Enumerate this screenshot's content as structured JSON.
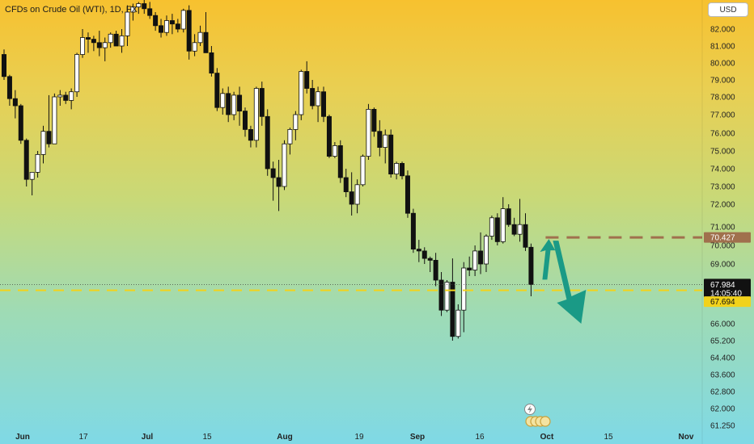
{
  "header": {
    "title": "CFDs on Crude Oil (WTI), 1D, FX"
  },
  "currency": "USD",
  "chart_data": {
    "type": "candlestick",
    "y_ticks": [
      "82.000",
      "81.000",
      "80.000",
      "79.000",
      "78.000",
      "77.000",
      "76.000",
      "75.000",
      "74.000",
      "73.000",
      "72.000",
      "71.000",
      "70.000",
      "69.000",
      "66.000",
      "65.200",
      "64.400",
      "63.600",
      "62.800",
      "62.000",
      "61.250"
    ],
    "x_ticks": [
      {
        "label": "Jun",
        "bold": true
      },
      {
        "label": "17",
        "bold": false
      },
      {
        "label": "Jul",
        "bold": true
      },
      {
        "label": "15",
        "bold": false
      },
      {
        "label": "Aug",
        "bold": true
      },
      {
        "label": "19",
        "bold": false
      },
      {
        "label": "Sep",
        "bold": true
      },
      {
        "label": "16",
        "bold": false
      },
      {
        "label": "Oct",
        "bold": true
      },
      {
        "label": "15",
        "bold": false
      },
      {
        "label": "Nov",
        "bold": true
      }
    ],
    "price_labels": {
      "resistance": "70.427",
      "last": "67.984",
      "countdown": "14:05:40",
      "support": "67.694"
    },
    "candles": [
      [
        80.5,
        80.8,
        79.0,
        79.2
      ],
      [
        79.2,
        79.3,
        77.5,
        77.9
      ],
      [
        77.9,
        78.4,
        76.8,
        77.5
      ],
      [
        77.5,
        77.6,
        75.4,
        75.6
      ],
      [
        75.6,
        75.7,
        73.0,
        73.4
      ],
      [
        73.4,
        73.8,
        72.5,
        73.8
      ],
      [
        73.8,
        75.0,
        73.5,
        74.8
      ],
      [
        74.8,
        76.4,
        74.3,
        76.1
      ],
      [
        76.1,
        78.1,
        75.2,
        75.4
      ],
      [
        75.4,
        78.2,
        75.4,
        78.0
      ],
      [
        78.0,
        78.4,
        77.5,
        78.1
      ],
      [
        78.1,
        78.3,
        77.6,
        77.8
      ],
      [
        77.8,
        78.5,
        77.3,
        78.3
      ],
      [
        78.3,
        80.6,
        78.0,
        80.5
      ],
      [
        80.5,
        82.0,
        80.3,
        81.5
      ],
      [
        81.5,
        81.8,
        80.6,
        81.4
      ],
      [
        81.4,
        81.6,
        80.7,
        81.2
      ],
      [
        81.2,
        81.9,
        80.4,
        80.9
      ],
      [
        80.9,
        81.5,
        80.1,
        81.2
      ],
      [
        81.2,
        81.8,
        80.9,
        81.7
      ],
      [
        81.7,
        81.9,
        81.0,
        81.0
      ],
      [
        81.0,
        82.0,
        80.6,
        81.6
      ],
      [
        81.6,
        83.4,
        81.0,
        83.0
      ],
      [
        83.0,
        83.5,
        82.5,
        83.3
      ],
      [
        83.3,
        83.6,
        82.9,
        83.5
      ],
      [
        83.5,
        83.8,
        82.9,
        83.2
      ],
      [
        83.2,
        83.6,
        82.6,
        82.8
      ],
      [
        82.8,
        83.0,
        81.9,
        82.2
      ],
      [
        82.2,
        82.6,
        81.5,
        81.8
      ],
      [
        81.8,
        82.8,
        81.6,
        82.5
      ],
      [
        82.5,
        82.9,
        81.7,
        82.3
      ],
      [
        82.3,
        82.6,
        81.8,
        82.0
      ],
      [
        82.0,
        83.2,
        81.8,
        83.1
      ],
      [
        83.1,
        83.4,
        80.2,
        80.7
      ],
      [
        80.7,
        81.7,
        80.4,
        81.2
      ],
      [
        81.2,
        82.2,
        81.0,
        81.8
      ],
      [
        81.8,
        83.0,
        80.6,
        80.6
      ],
      [
        80.6,
        81.0,
        79.2,
        79.4
      ],
      [
        79.4,
        79.7,
        77.2,
        77.4
      ],
      [
        77.4,
        78.5,
        77.0,
        78.2
      ],
      [
        78.2,
        78.6,
        76.6,
        77.0
      ],
      [
        77.0,
        78.3,
        76.7,
        78.1
      ],
      [
        78.1,
        78.6,
        76.4,
        77.2
      ],
      [
        77.2,
        77.4,
        75.8,
        76.2
      ],
      [
        76.2,
        76.4,
        75.2,
        75.6
      ],
      [
        75.6,
        78.6,
        75.2,
        78.5
      ],
      [
        78.5,
        78.9,
        76.4,
        76.9
      ],
      [
        76.9,
        77.3,
        73.6,
        74.0
      ],
      [
        74.0,
        74.4,
        72.2,
        73.5
      ],
      [
        73.5,
        74.5,
        71.7,
        73.0
      ],
      [
        73.0,
        75.6,
        72.8,
        75.4
      ],
      [
        75.4,
        76.3,
        74.8,
        76.2
      ],
      [
        76.2,
        77.2,
        75.6,
        77.0
      ],
      [
        77.0,
        79.6,
        76.7,
        79.5
      ],
      [
        79.5,
        80.1,
        78.2,
        78.5
      ],
      [
        78.5,
        79.0,
        77.3,
        77.5
      ],
      [
        77.5,
        78.6,
        76.6,
        78.3
      ],
      [
        78.3,
        78.6,
        76.6,
        76.9
      ],
      [
        76.9,
        77.0,
        74.6,
        74.7
      ],
      [
        74.7,
        75.5,
        74.6,
        75.3
      ],
      [
        75.3,
        75.6,
        73.2,
        73.5
      ],
      [
        73.5,
        74.0,
        72.4,
        72.7
      ],
      [
        72.7,
        73.8,
        71.5,
        72.0
      ],
      [
        72.0,
        73.4,
        71.6,
        73.1
      ],
      [
        73.1,
        74.8,
        73.0,
        74.7
      ],
      [
        74.7,
        77.6,
        74.5,
        77.3
      ],
      [
        77.3,
        77.4,
        75.8,
        76.1
      ],
      [
        76.1,
        76.7,
        74.7,
        75.2
      ],
      [
        75.2,
        76.2,
        74.3,
        75.9
      ],
      [
        75.9,
        76.2,
        73.5,
        73.7
      ],
      [
        73.7,
        74.4,
        73.4,
        74.3
      ],
      [
        74.3,
        74.4,
        73.4,
        73.6
      ],
      [
        73.6,
        73.9,
        71.4,
        71.6
      ],
      [
        71.6,
        71.8,
        69.6,
        69.8
      ],
      [
        69.8,
        70.3,
        69.1,
        69.7
      ],
      [
        69.7,
        69.9,
        69.0,
        69.3
      ],
      [
        69.3,
        69.4,
        68.6,
        69.2
      ],
      [
        69.2,
        69.6,
        67.9,
        68.2
      ],
      [
        68.2,
        68.6,
        66.4,
        66.7
      ],
      [
        66.7,
        68.2,
        66.6,
        68.1
      ],
      [
        68.1,
        69.3,
        65.2,
        65.4
      ],
      [
        65.4,
        67.0,
        65.3,
        66.7
      ],
      [
        66.7,
        69.1,
        65.6,
        68.8
      ],
      [
        68.8,
        69.4,
        68.4,
        68.7
      ],
      [
        68.7,
        70.0,
        68.4,
        69.7
      ],
      [
        69.7,
        70.7,
        68.5,
        69.0
      ],
      [
        69.0,
        70.6,
        68.6,
        70.5
      ],
      [
        70.5,
        71.5,
        70.3,
        71.4
      ],
      [
        71.4,
        71.6,
        70.0,
        70.2
      ],
      [
        70.2,
        72.4,
        70.1,
        71.8
      ],
      [
        71.8,
        72.0,
        71.0,
        71.1
      ],
      [
        71.1,
        71.4,
        70.5,
        70.6
      ],
      [
        70.6,
        72.3,
        70.2,
        71.1
      ],
      [
        71.1,
        71.6,
        69.7,
        69.9
      ],
      [
        69.9,
        70.1,
        67.4,
        67.984
      ]
    ]
  }
}
